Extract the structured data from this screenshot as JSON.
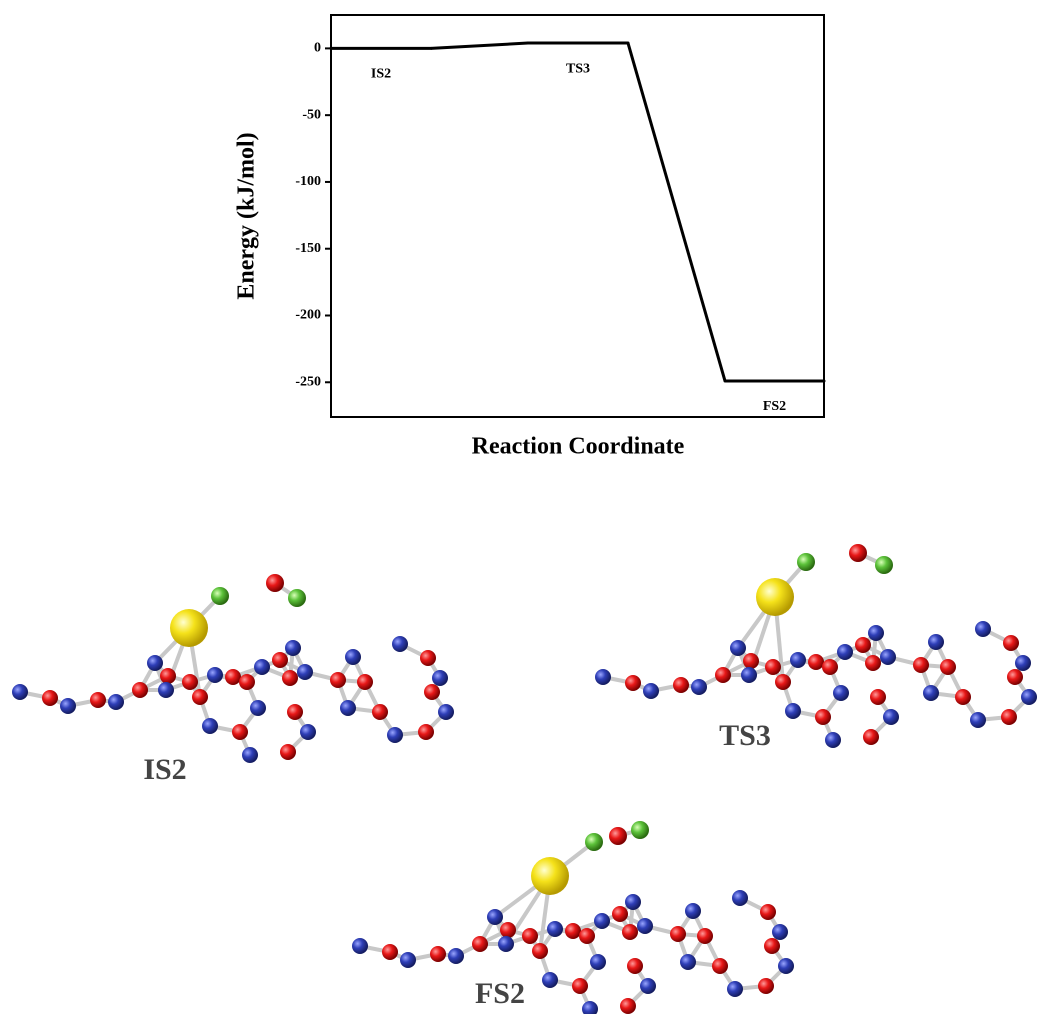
{
  "chart_data": {
    "type": "energy_profile",
    "y_label": "Energy (kJ/mol)",
    "x_label": "Reaction Coordinate",
    "categories": [
      "IS2",
      "TS3",
      "FS2"
    ],
    "values": [
      0,
      4,
      -249
    ],
    "color": "#000000",
    "ylim": [
      -276,
      25
    ],
    "yticks": [
      0,
      -50,
      -100,
      -150,
      -200,
      -250
    ]
  },
  "structure_labels": [
    "IS2",
    "TS3",
    "FS2"
  ]
}
